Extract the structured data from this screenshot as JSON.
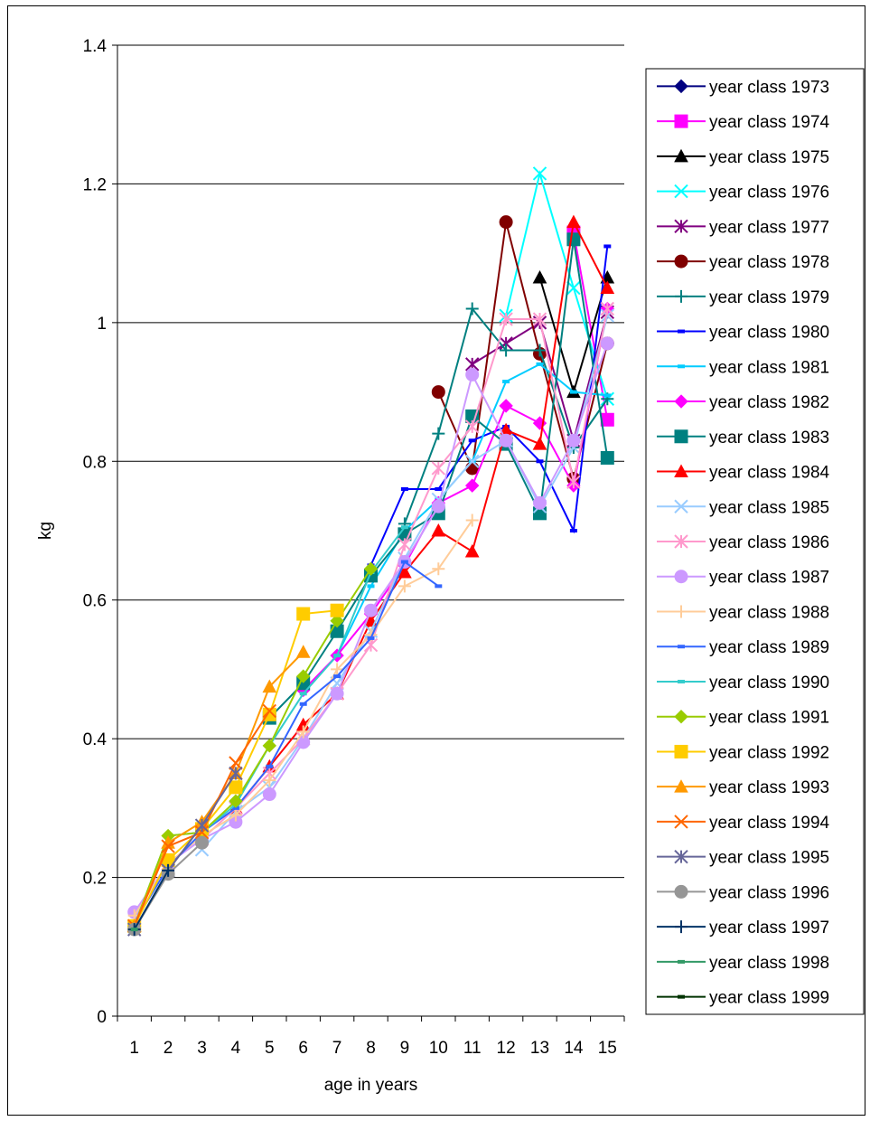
{
  "chart_data": {
    "type": "line",
    "title": "",
    "xlabel": "age in years",
    "ylabel": "kg",
    "x": [
      1,
      2,
      3,
      4,
      5,
      6,
      7,
      8,
      9,
      10,
      11,
      12,
      13,
      14,
      15
    ],
    "xlim": [
      0.5,
      15.5
    ],
    "ylim": [
      0,
      1.4
    ],
    "y_ticks": [
      "0",
      "0.2",
      "0.4",
      "0.6",
      "0.8",
      "1",
      "1.2",
      "1.4"
    ],
    "x_ticks": [
      "1",
      "2",
      "3",
      "4",
      "5",
      "6",
      "7",
      "8",
      "9",
      "10",
      "11",
      "12",
      "13",
      "14",
      "15"
    ],
    "grid": "horizontal",
    "legend_position": "right",
    "series": [
      {
        "name": "year class 1973",
        "color": "#000080",
        "marker": "diamond",
        "values": [
          null,
          null,
          null,
          null,
          null,
          null,
          null,
          null,
          null,
          null,
          null,
          null,
          null,
          null,
          null
        ]
      },
      {
        "name": "year class 1974",
        "color": "#ff00ff",
        "marker": "square",
        "values": [
          null,
          null,
          null,
          null,
          null,
          null,
          null,
          null,
          null,
          null,
          null,
          null,
          null,
          1.13,
          0.86
        ]
      },
      {
        "name": "year class 1975",
        "color": "#000000",
        "marker": "triangle",
        "values": [
          null,
          null,
          null,
          null,
          null,
          null,
          null,
          null,
          null,
          null,
          null,
          null,
          1.065,
          0.9,
          1.065
        ]
      },
      {
        "name": "year class 1976",
        "color": "#00ffff",
        "marker": "x",
        "values": [
          null,
          null,
          null,
          null,
          null,
          null,
          null,
          null,
          null,
          null,
          null,
          1.01,
          1.215,
          1.05,
          0.89
        ]
      },
      {
        "name": "year class 1977",
        "color": "#800080",
        "marker": "star",
        "values": [
          null,
          null,
          null,
          null,
          null,
          null,
          null,
          null,
          null,
          null,
          0.94,
          0.97,
          1.0,
          0.83,
          1.015
        ]
      },
      {
        "name": "year class 1978",
        "color": "#800000",
        "marker": "circle",
        "values": [
          null,
          null,
          null,
          null,
          null,
          null,
          null,
          null,
          null,
          0.9,
          0.79,
          1.145,
          0.955,
          0.775,
          0.97
        ]
      },
      {
        "name": "year class 1979",
        "color": "#008080",
        "marker": "plus",
        "values": [
          null,
          null,
          null,
          null,
          null,
          null,
          null,
          null,
          0.71,
          0.84,
          1.02,
          0.96,
          0.96,
          0.82,
          0.89
        ]
      },
      {
        "name": "year class 1980",
        "color": "#0000ff",
        "marker": "dash",
        "values": [
          null,
          null,
          null,
          null,
          null,
          null,
          null,
          0.65,
          0.76,
          0.76,
          0.83,
          0.85,
          0.8,
          0.7,
          1.11
        ]
      },
      {
        "name": "year class 1981",
        "color": "#00ccff",
        "marker": "dash",
        "values": [
          null,
          null,
          null,
          null,
          null,
          null,
          0.52,
          0.62,
          0.7,
          0.745,
          0.8,
          0.915,
          0.94,
          0.9,
          0.895
        ]
      },
      {
        "name": "year class 1982",
        "color": "#ff00ff",
        "marker": "diamond",
        "values": [
          null,
          null,
          null,
          null,
          null,
          0.47,
          0.52,
          0.58,
          0.65,
          0.74,
          0.765,
          0.88,
          0.855,
          0.765,
          1.02
        ]
      },
      {
        "name": "year class 1983",
        "color": "#008080",
        "marker": "square",
        "values": [
          null,
          null,
          null,
          null,
          0.43,
          0.48,
          0.555,
          0.635,
          0.695,
          0.725,
          0.865,
          0.825,
          0.725,
          1.12,
          0.805
        ]
      },
      {
        "name": "year class 1984",
        "color": "#ff0000",
        "marker": "triangle",
        "values": [
          null,
          null,
          null,
          0.3,
          0.36,
          0.42,
          0.465,
          0.57,
          0.64,
          0.7,
          0.67,
          0.845,
          0.825,
          1.145,
          1.05
        ]
      },
      {
        "name": "year class 1985",
        "color": "#99ccff",
        "marker": "x",
        "values": [
          null,
          null,
          0.24,
          0.295,
          0.33,
          0.4,
          0.48,
          0.555,
          0.66,
          0.745,
          0.8,
          0.83,
          0.735,
          0.82,
          1.01
        ]
      },
      {
        "name": "year class 1986",
        "color": "#ff99cc",
        "marker": "star",
        "values": [
          null,
          0.22,
          0.255,
          0.3,
          0.35,
          0.4,
          0.465,
          0.535,
          0.68,
          0.79,
          0.85,
          1.005,
          1.005,
          0.77,
          1.02
        ]
      },
      {
        "name": "year class 1987",
        "color": "#cc99ff",
        "marker": "circle",
        "values": [
          0.15,
          0.22,
          0.255,
          0.28,
          0.32,
          0.395,
          0.465,
          0.585,
          0.655,
          0.735,
          0.925,
          0.83,
          0.74,
          0.83,
          0.97
        ]
      },
      {
        "name": "year class 1988",
        "color": "#ffcc99",
        "marker": "plus",
        "values": [
          0.145,
          0.22,
          0.26,
          0.29,
          0.34,
          0.41,
          0.5,
          0.55,
          0.62,
          0.645,
          0.715,
          null,
          null,
          null,
          null
        ]
      },
      {
        "name": "year class 1989",
        "color": "#3366ff",
        "marker": "dash",
        "values": [
          0.135,
          0.215,
          0.265,
          0.3,
          0.36,
          0.45,
          0.49,
          0.545,
          0.655,
          0.62,
          null,
          null,
          null,
          null,
          null
        ]
      },
      {
        "name": "year class 1990",
        "color": "#33cccc",
        "marker": "dash",
        "values": [
          0.13,
          0.26,
          0.265,
          0.305,
          0.39,
          0.465,
          0.52,
          0.64,
          0.705,
          null,
          null,
          null,
          null,
          null,
          null
        ]
      },
      {
        "name": "year class 1991",
        "color": "#99cc00",
        "marker": "diamond",
        "values": [
          0.13,
          0.26,
          0.265,
          0.31,
          0.39,
          0.49,
          0.57,
          0.645,
          null,
          null,
          null,
          null,
          null,
          null,
          null
        ]
      },
      {
        "name": "year class 1992",
        "color": "#ffcc00",
        "marker": "square",
        "values": [
          0.13,
          0.225,
          0.27,
          0.33,
          0.435,
          0.58,
          0.585,
          null,
          null,
          null,
          null,
          null,
          null,
          null,
          null
        ]
      },
      {
        "name": "year class 1993",
        "color": "#ff9900",
        "marker": "triangle",
        "values": [
          0.13,
          0.25,
          0.28,
          0.35,
          0.475,
          0.525,
          null,
          null,
          null,
          null,
          null,
          null,
          null,
          null,
          null
        ]
      },
      {
        "name": "year class 1994",
        "color": "#ff6600",
        "marker": "x",
        "values": [
          0.13,
          0.245,
          0.265,
          0.365,
          0.44,
          null,
          null,
          null,
          null,
          null,
          null,
          null,
          null,
          null,
          null
        ]
      },
      {
        "name": "year class 1995",
        "color": "#666699",
        "marker": "star",
        "values": [
          0.125,
          0.21,
          0.275,
          0.35,
          null,
          null,
          null,
          null,
          null,
          null,
          null,
          null,
          null,
          null,
          null
        ]
      },
      {
        "name": "year class 1996",
        "color": "#969696",
        "marker": "circle",
        "values": [
          0.125,
          0.205,
          0.25,
          null,
          null,
          null,
          null,
          null,
          null,
          null,
          null,
          null,
          null,
          null,
          null
        ]
      },
      {
        "name": "year class 1997",
        "color": "#003366",
        "marker": "plus",
        "values": [
          0.125,
          0.21,
          null,
          null,
          null,
          null,
          null,
          null,
          null,
          null,
          null,
          null,
          null,
          null,
          null
        ]
      },
      {
        "name": "year class 1998",
        "color": "#339966",
        "marker": "dash",
        "values": [
          0.125,
          null,
          null,
          null,
          null,
          null,
          null,
          null,
          null,
          null,
          null,
          null,
          null,
          null,
          null
        ]
      },
      {
        "name": "year class 1999",
        "color": "#003300",
        "marker": "dash",
        "values": [
          null,
          null,
          null,
          null,
          null,
          null,
          null,
          null,
          null,
          null,
          null,
          null,
          null,
          null,
          null
        ]
      }
    ]
  }
}
